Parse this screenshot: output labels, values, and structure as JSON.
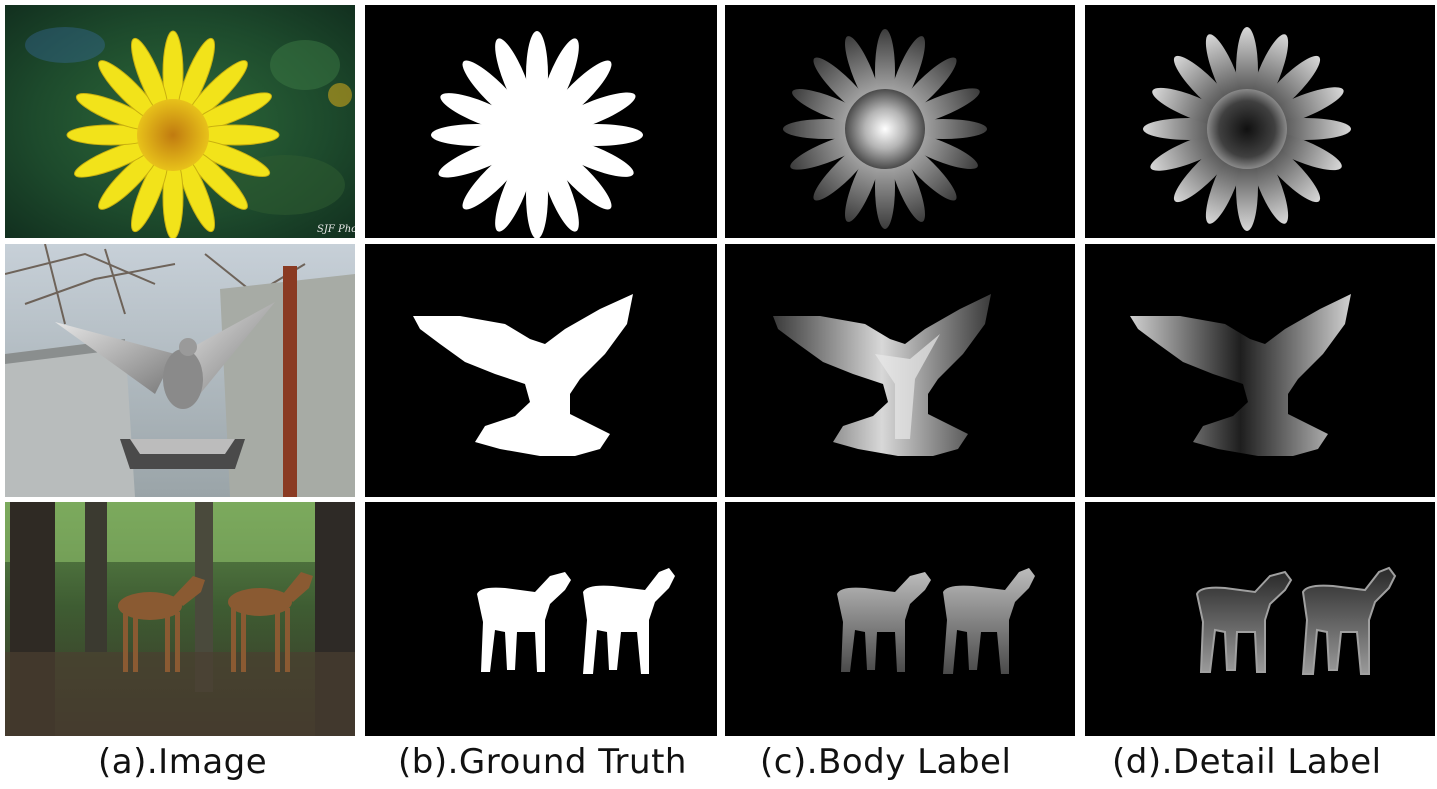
{
  "captions": [
    "(a).Image",
    "(b).Ground Truth",
    "(c).Body Label",
    "(d).Detail Label"
  ],
  "watermark": "SJF Photo",
  "rows": [
    "flower",
    "pigeon",
    "fawns"
  ],
  "colors": {
    "background": "#000000",
    "mask": "#ffffff",
    "flower_petal": "#f2e31a",
    "flower_center": "#d9a514",
    "foliage": "#1f4a2a"
  }
}
